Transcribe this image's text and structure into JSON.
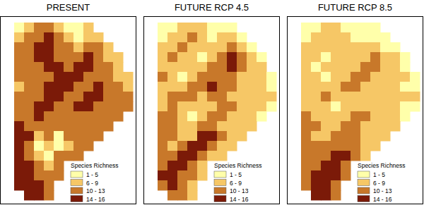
{
  "chart_data": [
    {
      "type": "heatmap",
      "title": "PRESENT",
      "legend_title": "Species Richness",
      "classes": [
        {
          "range": [
            1,
            5
          ],
          "label": "1 - 5",
          "color": "#ffffaa"
        },
        {
          "range": [
            6,
            9
          ],
          "label": "6 - 9",
          "color": "#f6c766"
        },
        {
          "range": [
            10,
            13
          ],
          "label": "10 - 13",
          "color": "#c8782a"
        },
        {
          "range": [
            14,
            16
          ],
          "label": "14 - 16",
          "color": "#7b1a08"
        }
      ],
      "cells": [
        [
          3,
          8,
          12,
          12,
          8,
          3,
          3,
          8,
          null,
          null,
          null,
          null
        ],
        [
          8,
          12,
          12,
          15,
          12,
          8,
          3,
          8,
          8,
          null,
          null,
          null
        ],
        [
          12,
          12,
          15,
          15,
          12,
          12,
          8,
          12,
          12,
          8,
          null,
          null
        ],
        [
          12,
          12,
          15,
          15,
          12,
          12,
          12,
          15,
          12,
          8,
          8,
          null
        ],
        [
          12,
          12,
          12,
          15,
          15,
          12,
          15,
          15,
          12,
          12,
          8,
          null
        ],
        [
          12,
          12,
          12,
          12,
          15,
          15,
          15,
          12,
          12,
          12,
          8,
          8
        ],
        [
          8,
          12,
          12,
          15,
          15,
          15,
          12,
          12,
          15,
          12,
          12,
          8
        ],
        [
          12,
          12,
          12,
          15,
          15,
          12,
          12,
          15,
          15,
          12,
          12,
          12
        ],
        [
          12,
          12,
          15,
          15,
          12,
          12,
          15,
          15,
          12,
          12,
          12,
          12
        ],
        [
          12,
          12,
          15,
          12,
          12,
          12,
          12,
          12,
          12,
          12,
          12,
          null
        ],
        [
          15,
          12,
          12,
          12,
          12,
          12,
          12,
          12,
          12,
          12,
          null,
          null
        ],
        [
          15,
          15,
          8,
          12,
          3,
          12,
          12,
          12,
          12,
          null,
          null,
          null
        ],
        [
          15,
          12,
          3,
          8,
          3,
          8,
          12,
          12,
          null,
          null,
          null,
          null
        ],
        [
          15,
          12,
          8,
          3,
          12,
          12,
          12,
          null,
          null,
          null,
          null,
          null
        ],
        [
          15,
          15,
          12,
          8,
          12,
          null,
          null,
          null,
          null,
          null,
          null,
          null
        ],
        [
          15,
          15,
          12,
          12,
          12,
          null,
          null,
          null,
          null,
          null,
          null,
          null
        ],
        [
          15,
          15,
          15,
          12,
          null,
          null,
          null,
          null,
          null,
          null,
          null,
          null
        ],
        [
          null,
          15,
          15,
          12,
          null,
          null,
          null,
          null,
          null,
          null,
          null,
          null
        ]
      ]
    },
    {
      "type": "heatmap",
      "title": "FUTURE RCP 4.5",
      "legend_title": "Species Richness",
      "classes": [
        {
          "range": [
            1,
            5
          ],
          "label": "1 - 5",
          "color": "#ffffaa"
        },
        {
          "range": [
            6,
            9
          ],
          "label": "6 - 9",
          "color": "#f6c766"
        },
        {
          "range": [
            10,
            13
          ],
          "label": "10 - 13",
          "color": "#c8782a"
        },
        {
          "range": [
            14,
            16
          ],
          "label": "14 - 16",
          "color": "#7b1a08"
        }
      ],
      "cells": [
        [
          3,
          3,
          8,
          8,
          8,
          3,
          3,
          3,
          null,
          null,
          null,
          null
        ],
        [
          3,
          8,
          8,
          12,
          8,
          3,
          8,
          8,
          3,
          null,
          null,
          null
        ],
        [
          8,
          8,
          12,
          8,
          8,
          8,
          8,
          12,
          8,
          3,
          null,
          null
        ],
        [
          8,
          12,
          8,
          8,
          3,
          8,
          12,
          15,
          12,
          8,
          3,
          null
        ],
        [
          8,
          8,
          8,
          8,
          8,
          12,
          12,
          15,
          12,
          8,
          8,
          null
        ],
        [
          12,
          8,
          3,
          8,
          12,
          12,
          12,
          12,
          8,
          8,
          8,
          3
        ],
        [
          8,
          8,
          8,
          12,
          12,
          15,
          12,
          12,
          8,
          8,
          8,
          3
        ],
        [
          8,
          12,
          12,
          12,
          8,
          12,
          12,
          8,
          8,
          8,
          8,
          8
        ],
        [
          8,
          12,
          8,
          8,
          8,
          8,
          12,
          12,
          8,
          8,
          8,
          3
        ],
        [
          12,
          12,
          8,
          3,
          8,
          12,
          12,
          8,
          8,
          8,
          3,
          null
        ],
        [
          12,
          12,
          8,
          8,
          12,
          12,
          8,
          8,
          8,
          8,
          null,
          null
        ],
        [
          12,
          12,
          8,
          8,
          15,
          15,
          12,
          8,
          8,
          null,
          null,
          null
        ],
        [
          12,
          8,
          12,
          15,
          15,
          12,
          8,
          8,
          null,
          null,
          null,
          null
        ],
        [
          12,
          12,
          15,
          15,
          12,
          8,
          8,
          null,
          null,
          null,
          null,
          null
        ],
        [
          12,
          15,
          15,
          12,
          8,
          null,
          null,
          null,
          null,
          null,
          null,
          null
        ],
        [
          15,
          15,
          12,
          12,
          8,
          null,
          null,
          null,
          null,
          null,
          null,
          null
        ],
        [
          12,
          15,
          12,
          8,
          null,
          null,
          null,
          null,
          null,
          null,
          null,
          null
        ],
        [
          null,
          12,
          12,
          8,
          null,
          null,
          null,
          null,
          null,
          null,
          null,
          null
        ]
      ]
    },
    {
      "type": "heatmap",
      "title": "FUTURE RCP 8.5",
      "legend_title": "Species Richness",
      "classes": [
        {
          "range": [
            1,
            5
          ],
          "label": "1 - 5",
          "color": "#ffffaa"
        },
        {
          "range": [
            6,
            9
          ],
          "label": "6 - 9",
          "color": "#f6c766"
        },
        {
          "range": [
            10,
            13
          ],
          "label": "10 - 13",
          "color": "#c8782a"
        },
        {
          "range": [
            14,
            16
          ],
          "label": "14 - 16",
          "color": "#7b1a08"
        }
      ],
      "cells": [
        [
          3,
          3,
          8,
          8,
          3,
          3,
          3,
          3,
          null,
          null,
          null,
          null
        ],
        [
          3,
          8,
          8,
          8,
          8,
          3,
          3,
          3,
          3,
          null,
          null,
          null
        ],
        [
          8,
          8,
          8,
          8,
          8,
          8,
          8,
          8,
          3,
          3,
          null,
          null
        ],
        [
          8,
          8,
          3,
          8,
          8,
          8,
          8,
          12,
          8,
          8,
          3,
          null
        ],
        [
          8,
          3,
          8,
          8,
          8,
          8,
          12,
          12,
          8,
          8,
          3,
          null
        ],
        [
          8,
          8,
          3,
          8,
          8,
          12,
          12,
          8,
          8,
          8,
          8,
          3
        ],
        [
          8,
          8,
          8,
          8,
          12,
          12,
          8,
          8,
          8,
          8,
          3,
          3
        ],
        [
          8,
          8,
          12,
          8,
          8,
          8,
          8,
          8,
          8,
          8,
          8,
          8
        ],
        [
          8,
          8,
          8,
          3,
          8,
          8,
          8,
          8,
          8,
          8,
          3,
          3
        ],
        [
          12,
          8,
          8,
          8,
          8,
          12,
          12,
          8,
          8,
          8,
          3,
          null
        ],
        [
          12,
          12,
          8,
          8,
          12,
          12,
          8,
          8,
          8,
          8,
          null,
          null
        ],
        [
          12,
          8,
          8,
          12,
          12,
          12,
          8,
          8,
          8,
          null,
          null,
          null
        ],
        [
          12,
          12,
          12,
          12,
          12,
          12,
          8,
          8,
          null,
          null,
          null,
          null
        ],
        [
          12,
          12,
          12,
          15,
          15,
          12,
          8,
          null,
          null,
          null,
          null,
          null
        ],
        [
          12,
          12,
          15,
          15,
          12,
          null,
          null,
          null,
          null,
          null,
          null,
          null
        ],
        [
          12,
          15,
          15,
          15,
          12,
          null,
          null,
          null,
          null,
          null,
          null,
          null
        ],
        [
          12,
          15,
          15,
          12,
          null,
          null,
          null,
          null,
          null,
          null,
          null,
          null
        ],
        [
          null,
          15,
          15,
          12,
          null,
          null,
          null,
          null,
          null,
          null,
          null,
          null
        ]
      ]
    }
  ]
}
